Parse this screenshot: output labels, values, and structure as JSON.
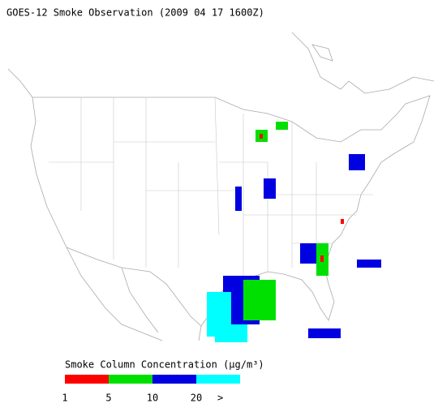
{
  "title": "GOES-12 Smoke Observation (2009 04 17  1600Z)",
  "legend": {
    "title": "Smoke Column Concentration (μg/m³)",
    "colors": [
      "#ff0000",
      "#00e000",
      "#0000e0",
      "#00ffff"
    ],
    "labels": [
      "1",
      "5",
      "10",
      "20",
      ">"
    ]
  }
}
